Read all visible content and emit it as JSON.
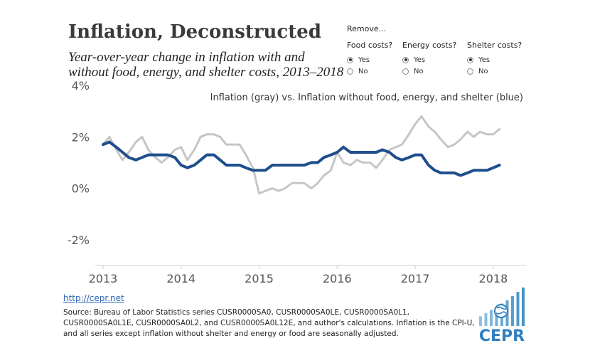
{
  "header": {
    "title": "Inflation, Deconstructed",
    "subtitle": "Year-over-year change in inflation with and without food, energy, and shelter costs, 2013–2018"
  },
  "filters": {
    "heading": "Remove...",
    "groups": [
      {
        "label": "Food costs?",
        "options": [
          "Yes",
          "No"
        ],
        "selected": "Yes"
      },
      {
        "label": "Energy costs?",
        "options": [
          "Yes",
          "No"
        ],
        "selected": "Yes"
      },
      {
        "label": "Shelter costs?",
        "options": [
          "Yes",
          "No"
        ],
        "selected": "Yes"
      }
    ]
  },
  "chart_data": {
    "type": "line",
    "title": "Inflation (gray) vs. Inflation without food, energy, and shelter (blue)",
    "xlim": [
      2012.9,
      2018.42
    ],
    "ylim": [
      -3,
      4
    ],
    "x_ticks": [
      2013,
      2014,
      2015,
      2016,
      2017,
      2018
    ],
    "y_ticks": [
      4,
      2,
      0,
      -2
    ],
    "y_tick_labels": [
      "4%",
      "2%",
      "0%",
      "-2%"
    ],
    "grid": false,
    "colors": {
      "gray": "#c6c6c6",
      "blue": "#1f4e8c"
    },
    "series": [
      {
        "color": "gray",
        "points": [
          [
            2013.0,
            1.7
          ],
          [
            2013.08,
            2.0
          ],
          [
            2013.17,
            1.5
          ],
          [
            2013.25,
            1.1
          ],
          [
            2013.33,
            1.4
          ],
          [
            2013.42,
            1.8
          ],
          [
            2013.5,
            2.0
          ],
          [
            2013.58,
            1.5
          ],
          [
            2013.67,
            1.2
          ],
          [
            2013.75,
            1.0
          ],
          [
            2013.83,
            1.2
          ],
          [
            2013.92,
            1.5
          ],
          [
            2014.0,
            1.6
          ],
          [
            2014.08,
            1.1
          ],
          [
            2014.17,
            1.5
          ],
          [
            2014.25,
            2.0
          ],
          [
            2014.33,
            2.1
          ],
          [
            2014.42,
            2.1
          ],
          [
            2014.5,
            2.0
          ],
          [
            2014.58,
            1.7
          ],
          [
            2014.67,
            1.7
          ],
          [
            2014.75,
            1.7
          ],
          [
            2014.83,
            1.3
          ],
          [
            2014.92,
            0.8
          ],
          [
            2015.0,
            -0.2
          ],
          [
            2015.08,
            -0.1
          ],
          [
            2015.17,
            0.0
          ],
          [
            2015.25,
            -0.1
          ],
          [
            2015.33,
            0.0
          ],
          [
            2015.42,
            0.2
          ],
          [
            2015.5,
            0.2
          ],
          [
            2015.58,
            0.2
          ],
          [
            2015.67,
            0.0
          ],
          [
            2015.75,
            0.2
          ],
          [
            2015.83,
            0.5
          ],
          [
            2015.92,
            0.7
          ],
          [
            2016.0,
            1.4
          ],
          [
            2016.08,
            1.0
          ],
          [
            2016.17,
            0.9
          ],
          [
            2016.25,
            1.1
          ],
          [
            2016.33,
            1.0
          ],
          [
            2016.42,
            1.0
          ],
          [
            2016.5,
            0.8
          ],
          [
            2016.58,
            1.1
          ],
          [
            2016.67,
            1.5
          ],
          [
            2016.75,
            1.6
          ],
          [
            2016.83,
            1.7
          ],
          [
            2016.92,
            2.1
          ],
          [
            2017.0,
            2.5
          ],
          [
            2017.08,
            2.8
          ],
          [
            2017.17,
            2.4
          ],
          [
            2017.25,
            2.2
          ],
          [
            2017.33,
            1.9
          ],
          [
            2017.42,
            1.6
          ],
          [
            2017.5,
            1.7
          ],
          [
            2017.58,
            1.9
          ],
          [
            2017.67,
            2.2
          ],
          [
            2017.75,
            2.0
          ],
          [
            2017.83,
            2.2
          ],
          [
            2017.92,
            2.1
          ],
          [
            2018.0,
            2.1
          ],
          [
            2018.08,
            2.3
          ]
        ]
      },
      {
        "color": "blue",
        "points": [
          [
            2013.0,
            1.7
          ],
          [
            2013.08,
            1.8
          ],
          [
            2013.17,
            1.6
          ],
          [
            2013.25,
            1.4
          ],
          [
            2013.33,
            1.2
          ],
          [
            2013.42,
            1.1
          ],
          [
            2013.5,
            1.2
          ],
          [
            2013.58,
            1.3
          ],
          [
            2013.67,
            1.3
          ],
          [
            2013.75,
            1.3
          ],
          [
            2013.83,
            1.3
          ],
          [
            2013.92,
            1.2
          ],
          [
            2014.0,
            0.9
          ],
          [
            2014.08,
            0.8
          ],
          [
            2014.17,
            0.9
          ],
          [
            2014.25,
            1.1
          ],
          [
            2014.33,
            1.3
          ],
          [
            2014.42,
            1.3
          ],
          [
            2014.5,
            1.1
          ],
          [
            2014.58,
            0.9
          ],
          [
            2014.67,
            0.9
          ],
          [
            2014.75,
            0.9
          ],
          [
            2014.83,
            0.8
          ],
          [
            2014.92,
            0.7
          ],
          [
            2015.0,
            0.7
          ],
          [
            2015.08,
            0.7
          ],
          [
            2015.17,
            0.9
          ],
          [
            2015.25,
            0.9
          ],
          [
            2015.33,
            0.9
          ],
          [
            2015.42,
            0.9
          ],
          [
            2015.5,
            0.9
          ],
          [
            2015.58,
            0.9
          ],
          [
            2015.67,
            1.0
          ],
          [
            2015.75,
            1.0
          ],
          [
            2015.83,
            1.2
          ],
          [
            2015.92,
            1.3
          ],
          [
            2016.0,
            1.4
          ],
          [
            2016.08,
            1.6
          ],
          [
            2016.17,
            1.4
          ],
          [
            2016.25,
            1.4
          ],
          [
            2016.33,
            1.4
          ],
          [
            2016.42,
            1.4
          ],
          [
            2016.5,
            1.4
          ],
          [
            2016.58,
            1.5
          ],
          [
            2016.67,
            1.4
          ],
          [
            2016.75,
            1.2
          ],
          [
            2016.83,
            1.1
          ],
          [
            2016.92,
            1.2
          ],
          [
            2017.0,
            1.3
          ],
          [
            2017.08,
            1.3
          ],
          [
            2017.17,
            0.9
          ],
          [
            2017.25,
            0.7
          ],
          [
            2017.33,
            0.6
          ],
          [
            2017.42,
            0.6
          ],
          [
            2017.5,
            0.6
          ],
          [
            2017.58,
            0.5
          ],
          [
            2017.67,
            0.6
          ],
          [
            2017.75,
            0.7
          ],
          [
            2017.83,
            0.7
          ],
          [
            2017.92,
            0.7
          ],
          [
            2018.0,
            0.8
          ],
          [
            2018.08,
            0.9
          ]
        ]
      }
    ]
  },
  "footer": {
    "link": "http://cepr.net",
    "source": "Source: Bureau of Labor Statistics series CUSR0000SA0, CUSR0000SA0LE, CUSR0000SA0L1, CUSR0000SA0L1E, CUSR0000SA0L2, and CUSR0000SA0L12E, and author's calculations. Inflation is the CPI-U, and all series except inflation without shelter and energy or food are seasonally adjusted.",
    "logo_text": "CEPR",
    "logo_color": "#3a8fc4"
  }
}
